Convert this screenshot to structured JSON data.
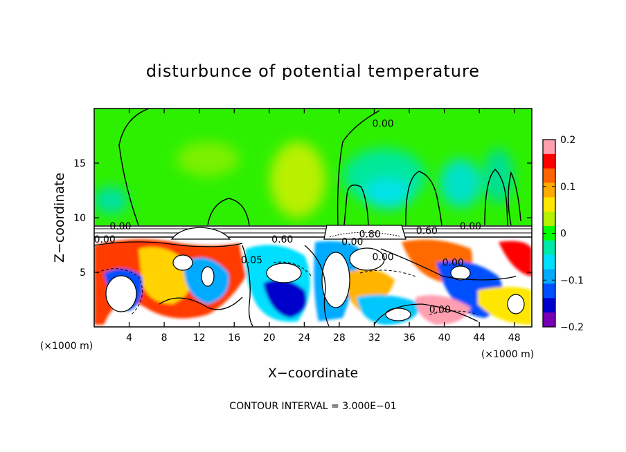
{
  "chart_data": {
    "type": "heatmap",
    "title": "disturbunce of potential temperature",
    "xlabel": "X−coordinate",
    "ylabel": "Z−coordinate",
    "x_unit_left": "(×1000 m)",
    "x_unit_right": "(×1000 m)",
    "xlim": [
      0,
      50
    ],
    "ylim": [
      0,
      20
    ],
    "x_ticks": [
      4,
      8,
      12,
      16,
      20,
      24,
      28,
      32,
      36,
      40,
      44,
      48
    ],
    "x_tick_labels": [
      "4",
      "8",
      "12",
      "16",
      "20",
      "24",
      "28",
      "32",
      "36",
      "40",
      "44",
      "48"
    ],
    "y_ticks": [
      5,
      10,
      15
    ],
    "y_tick_labels": [
      "5",
      "10",
      "15"
    ],
    "colorbar": {
      "range": [
        -0.2,
        0.2
      ],
      "tick_values": [
        0.2,
        0.1,
        0,
        -0.1,
        -0.2
      ],
      "tick_labels": [
        "0.2",
        "0.1",
        "0",
        "−0.1",
        "−0.2"
      ],
      "colors": [
        "#ff9fb0",
        "#ff0000",
        "#ff6400",
        "#ffaa00",
        "#ffe600",
        "#b4f000",
        "#00ff00",
        "#00e8aa",
        "#00dfff",
        "#00aaff",
        "#0050ff",
        "#0000cc",
        "#7800b4"
      ]
    },
    "contour_labels": [
      {
        "text": "0.00",
        "x": 3.0,
        "z": 9.1
      },
      {
        "text": "0.00",
        "x": 1.2,
        "z": 7.9
      },
      {
        "text": "0.60",
        "x": 21.5,
        "z": 7.9
      },
      {
        "text": "0.00",
        "x": 33.0,
        "z": 18.5
      },
      {
        "text": "0.00",
        "x": 29.5,
        "z": 7.7
      },
      {
        "text": "0.80",
        "x": 31.5,
        "z": 8.4
      },
      {
        "text": "0.60",
        "x": 38.0,
        "z": 8.7
      },
      {
        "text": "0.00",
        "x": 43.0,
        "z": 9.1
      },
      {
        "text": "0.05",
        "x": 18.0,
        "z": 6.0
      },
      {
        "text": "0.00",
        "x": 33.0,
        "z": 6.3
      },
      {
        "text": "0.00",
        "x": 41.0,
        "z": 5.8
      },
      {
        "text": "0.00",
        "x": 39.5,
        "z": 1.5
      }
    ],
    "caption": "CONTOUR INTERVAL = 3.000E−01"
  }
}
